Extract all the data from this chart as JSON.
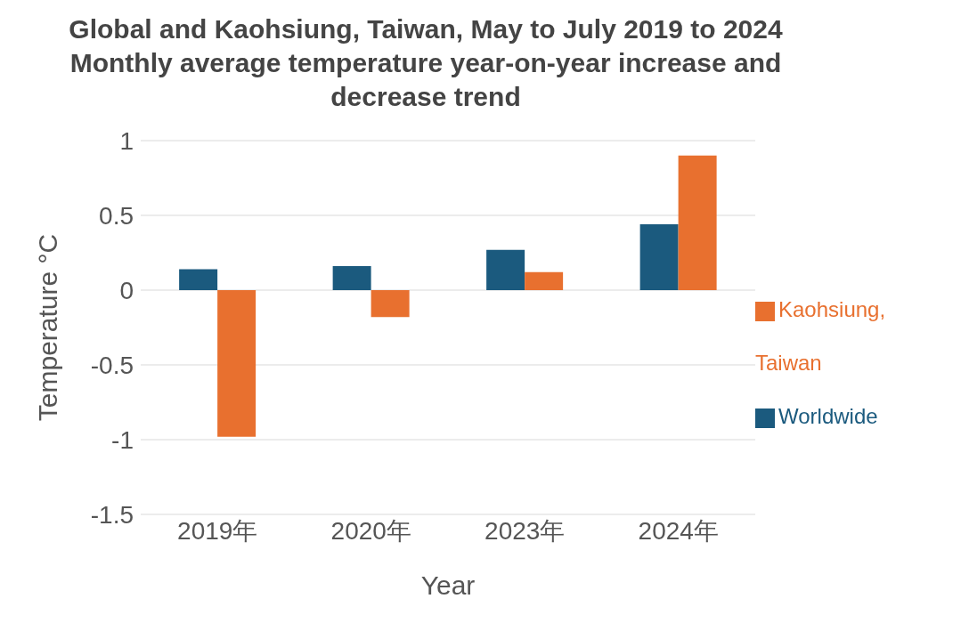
{
  "chart_data": {
    "type": "bar",
    "title": "Global and Kaohsiung, Taiwan, May to July 2019 to 2024 Monthly average temperature year-on-year increase and decrease trend",
    "xlabel": "Year",
    "ylabel": "Temperature °C",
    "categories": [
      "2019年",
      "2020年",
      "2023年",
      "2024年"
    ],
    "series": [
      {
        "name": "Worldwide",
        "color": "#1b5a7e",
        "values": [
          0.14,
          0.16,
          0.27,
          0.44
        ]
      },
      {
        "name": "Kaohsiung, Taiwan",
        "color": "#e8702f",
        "values": [
          -0.98,
          -0.18,
          0.12,
          0.9
        ]
      }
    ],
    "ylim": [
      -1.5,
      1
    ],
    "yticks": [
      -1.5,
      -1,
      -0.5,
      0,
      0.5,
      1
    ],
    "grid": "y",
    "legend": "right"
  }
}
